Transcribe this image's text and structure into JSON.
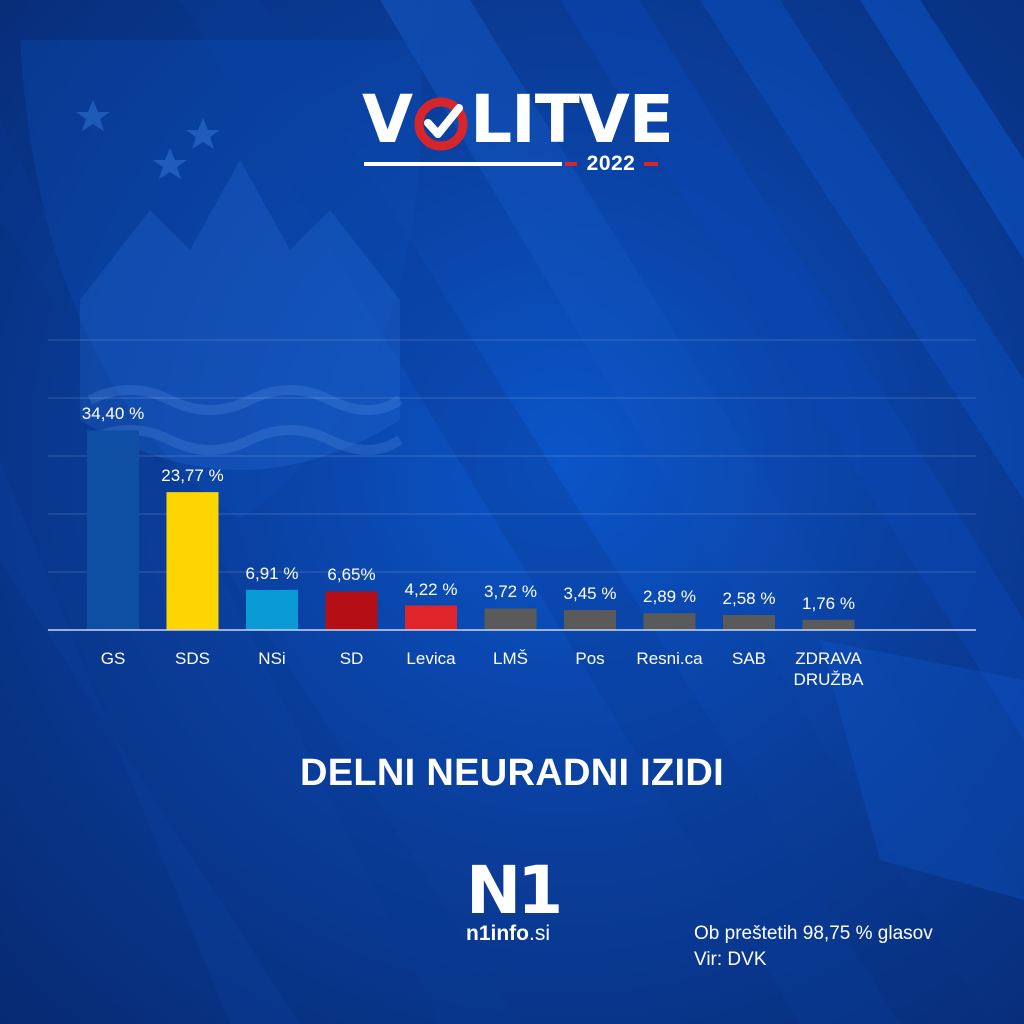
{
  "header": {
    "logo_word_start": "V",
    "logo_word_end": "LITVE",
    "logo_year": "2022"
  },
  "chart_data": {
    "type": "bar",
    "categories": [
      "GS",
      "SDS",
      "NSi",
      "SD",
      "Levica",
      "LMŠ",
      "Pos",
      "Resni.ca",
      "SAB",
      "ZDRAVA\nDRUŽBA"
    ],
    "values": [
      34.4,
      23.77,
      6.91,
      6.65,
      4.22,
      3.72,
      3.45,
      2.89,
      2.58,
      1.76
    ],
    "value_labels": [
      "34,40 %",
      "23,77 %",
      "6,91 %",
      "6,65%",
      "4,22 %",
      "3,72 %",
      "3,45 %",
      "2,89 %",
      "2,58 %",
      "1,76 %"
    ],
    "colors": [
      "#0e4fa3",
      "#ffd500",
      "#0a9ad6",
      "#b30f14",
      "#e0262b",
      "#5a5a5a",
      "#5a5a5a",
      "#5a5a5a",
      "#5a5a5a",
      "#5a5a5a"
    ],
    "ylim": [
      0,
      50
    ],
    "grid": true,
    "xlabel": "",
    "ylabel": ""
  },
  "subtitle": "DELNI NEURADNI IZIDI",
  "brand": {
    "mark": "N1",
    "site_bold": "n1info",
    "site_rest": ".si"
  },
  "footer": {
    "counted": "Ob preštetih 98,75 % glasov",
    "source": "Vir: DVK"
  }
}
